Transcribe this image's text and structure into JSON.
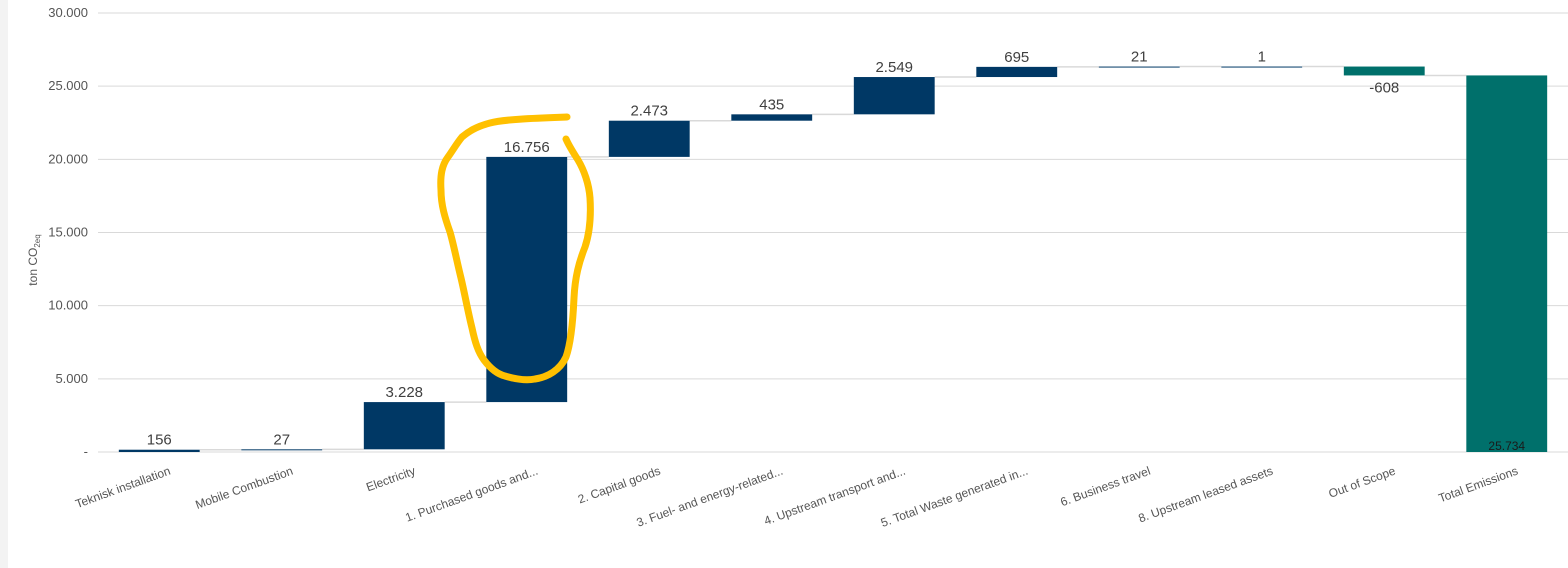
{
  "chart_data": {
    "type": "bar",
    "variant": "waterfall",
    "ylabel": "ton CO",
    "ylabel_sub": "2eq",
    "ylim": [
      0,
      30000
    ],
    "yticks": [
      0,
      5000,
      10000,
      15000,
      20000,
      25000,
      30000
    ],
    "ytick_labels": [
      "-",
      "5.000",
      "10.000",
      "15.000",
      "20.000",
      "25.000",
      "30.000"
    ],
    "grid": true,
    "categories": [
      "Teknisk installation",
      "Mobile Combustion",
      "Electricity",
      "1. Purchased goods and...",
      "2. Capital goods",
      "3. Fuel- and energy-related...",
      "4. Upstream transport and...",
      "5. Total Waste generated in...",
      "6. Business travel",
      "8. Upstream leased assets",
      "Out of Scope",
      "Total Emissions"
    ],
    "values": [
      156,
      27,
      3228,
      16756,
      2473,
      435,
      2549,
      695,
      21,
      1,
      -608,
      25734
    ],
    "value_labels": [
      "156",
      "27",
      "3.228",
      "16.756",
      "2.473",
      "435",
      "2.549",
      "695",
      "21",
      "1",
      "-608",
      "25.734"
    ],
    "total_index": 11,
    "colors": {
      "increase": "#003865",
      "decrease": "#00706b",
      "total": "#00706b",
      "connector": "#d9d9d9",
      "grid": "#d9d9d9",
      "highlight": "#ffc000"
    },
    "annotation": "hand-drawn yellow circle around 1. Purchased goods and..."
  }
}
